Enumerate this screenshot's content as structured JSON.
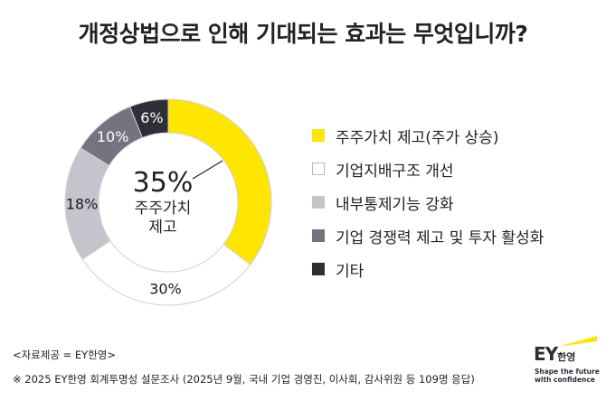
{
  "title": "개정상법으로 인해 기대되는 효과는 무엇입니까?",
  "center": {
    "value": "35%",
    "label_line1": "주주가치",
    "label_line2": "제고"
  },
  "footer": {
    "source": "<자료제공 = EY한영>",
    "note": "※ 2025 EY한영 회계투명성 설문조사 (2025년 9월, 국내 기업 경영진, 이사회, 감사위원 등 109명 응답)"
  },
  "logo": {
    "brand": "EY",
    "brand_kr": "한영",
    "tagline": "Shape the future\nwith confidence",
    "beam_color": "#FFE600"
  },
  "chart_data": {
    "type": "pie",
    "title": "개정상법으로 인해 기대되는 효과는 무엇입니까?",
    "categories": [
      "주주가치 제고(주가 상승)",
      "기업지배구조 개선",
      "내부통제기능 강화",
      "기업 경쟁력 제고 및 투자 활성화",
      "기타"
    ],
    "values": [
      35,
      30,
      18,
      10,
      6
    ],
    "value_labels": [
      "35%",
      "30%",
      "18%",
      "10%",
      "6%"
    ],
    "colors": [
      "#FFE600",
      "#FFFFFF",
      "#C4C4CD",
      "#747480",
      "#2E2E38"
    ],
    "label_colors": [
      "#1a1a1a",
      "#1a1a1a",
      "#1a1a1a",
      "#ffffff",
      "#ffffff"
    ],
    "legend_position": "right",
    "style": "donut"
  }
}
